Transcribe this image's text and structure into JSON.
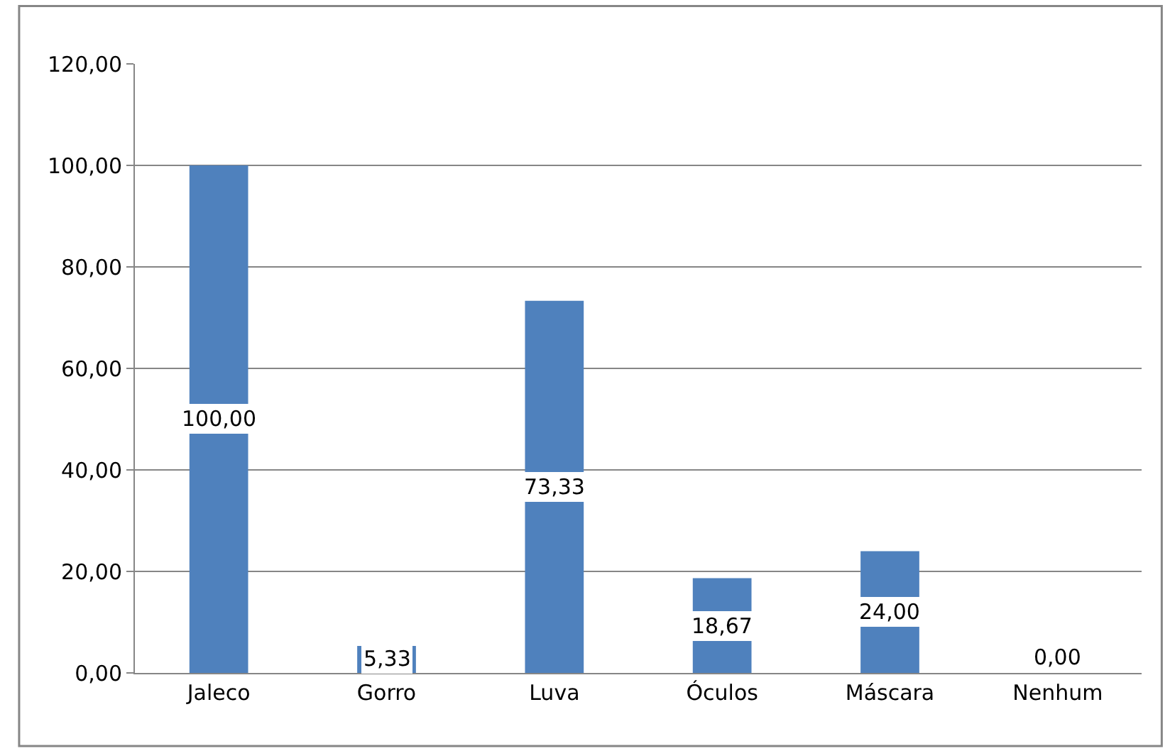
{
  "chart_data": {
    "type": "bar",
    "categories": [
      "Jaleco",
      "Gorro",
      "Luva",
      "Óculos",
      "Máscara",
      "Nenhum"
    ],
    "values": [
      100,
      5.33,
      73.33,
      18.67,
      24,
      0
    ],
    "value_labels": [
      "100,00",
      "5,33",
      "73,33",
      "18,67",
      "24,00",
      "0,00"
    ],
    "color": "#4f81bd",
    "ylim": [
      0,
      120
    ],
    "yticks": [
      {
        "value": 0,
        "label": "0,00"
      },
      {
        "value": 20,
        "label": "20,00"
      },
      {
        "value": 40,
        "label": "40,00"
      },
      {
        "value": 60,
        "label": "60,00"
      },
      {
        "value": 80,
        "label": "80,00"
      },
      {
        "value": 100,
        "label": "100,00"
      },
      {
        "value": 120,
        "label": "120,00"
      }
    ],
    "grid": "y"
  }
}
